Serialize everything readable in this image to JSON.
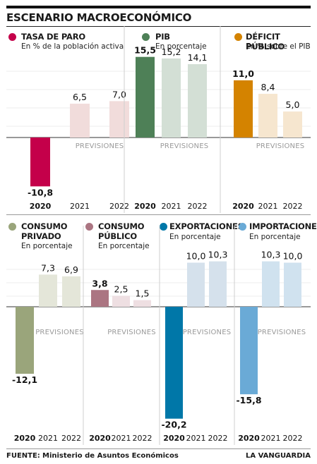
{
  "title": "ESCENARIO MACROECONÓMICO",
  "forecast_label": "PREVISIONES",
  "colors": {
    "paro": "#c4004a",
    "paro_light": "#f1dcdb",
    "pib": "#4e8057",
    "pib_light": "#d3dfd5",
    "deficit": "#d48300",
    "deficit_light": "#f6e6cf",
    "consumo_privado": "#9aa57b",
    "consumo_privado_light": "#e4e6d9",
    "consumo_publico": "#ab7582",
    "consumo_publico_light": "#eedfe2",
    "exportaciones": "#0077a8",
    "exportaciones_light": "#d5e1ec",
    "importaciones": "#6aaad6",
    "importaciones_light": "#d0e2ef"
  },
  "chart_data": [
    {
      "id": "paro",
      "type": "bar",
      "title": "TASA DE PARO",
      "subtitle": "En % de la población activa",
      "categories": [
        "2020",
        "2021",
        "2022"
      ],
      "values": [
        -10.8,
        6.5,
        7.0
      ],
      "labels": [
        "-10,8",
        "6,5",
        "7,0"
      ],
      "ylim": [
        -12,
        16
      ],
      "color": "#c4004a",
      "forecast_color": "#f1dcdb"
    },
    {
      "id": "pib",
      "type": "bar",
      "title": "PIB",
      "subtitle": "En porcentaje",
      "categories": [
        "2020",
        "2021",
        "2022"
      ],
      "values": [
        15.5,
        15.2,
        14.1
      ],
      "labels": [
        "15,5",
        "15,2",
        "14,1"
      ],
      "ylim": [
        -12,
        16
      ],
      "color": "#4e8057",
      "forecast_color": "#d3dfd5"
    },
    {
      "id": "deficit",
      "type": "bar",
      "title": "DÉFICIT PÚBLICO",
      "subtitle": "En % sobre el PIB",
      "categories": [
        "2020",
        "2021",
        "2022"
      ],
      "values": [
        11.0,
        8.4,
        5.0
      ],
      "labels": [
        "11,0",
        "8,4",
        "5,0"
      ],
      "ylim": [
        -12,
        16
      ],
      "color": "#d48300",
      "forecast_color": "#f6e6cf"
    },
    {
      "id": "consumo_privado",
      "type": "bar",
      "title": "CONSUMO PRIVADO",
      "subtitle": "En porcentaje",
      "categories": [
        "2020",
        "2021",
        "2022"
      ],
      "values": [
        -12.1,
        7.3,
        6.9
      ],
      "labels": [
        "-12,1",
        "7,3",
        "6,9"
      ],
      "ylim": [
        -21,
        12
      ],
      "color": "#9aa57b",
      "forecast_color": "#e4e6d9"
    },
    {
      "id": "consumo_publico",
      "type": "bar",
      "title": "CONSUMO PÚBLICO",
      "subtitle": "En porcentaje",
      "categories": [
        "2020",
        "2021",
        "2022"
      ],
      "values": [
        3.8,
        2.5,
        1.5
      ],
      "labels": [
        "3,8",
        "2,5",
        "1,5"
      ],
      "ylim": [
        -21,
        12
      ],
      "color": "#ab7582",
      "forecast_color": "#eedfe2"
    },
    {
      "id": "exportaciones",
      "type": "bar",
      "title": "EXPORTACIONES",
      "subtitle": "En porcentaje",
      "categories": [
        "2020",
        "2021",
        "2022"
      ],
      "values": [
        -20.2,
        10.0,
        10.3
      ],
      "labels": [
        "-20,2",
        "10,0",
        "10,3"
      ],
      "ylim": [
        -21,
        12
      ],
      "color": "#0077a8",
      "forecast_color": "#d5e1ec"
    },
    {
      "id": "importaciones",
      "type": "bar",
      "title": "IMPORTACIONES",
      "subtitle": "En porcentaje",
      "categories": [
        "2020",
        "2021",
        "2022"
      ],
      "values": [
        -15.8,
        10.3,
        10.0
      ],
      "labels": [
        "-15,8",
        "10,3",
        "10,0"
      ],
      "ylim": [
        -21,
        12
      ],
      "color": "#6aaad6",
      "forecast_color": "#d0e2ef"
    }
  ],
  "footer": {
    "source_label": "FUENTE:",
    "source": "Ministerio de Asuntos Económicos",
    "brand": "LA VANGUARDIA"
  }
}
